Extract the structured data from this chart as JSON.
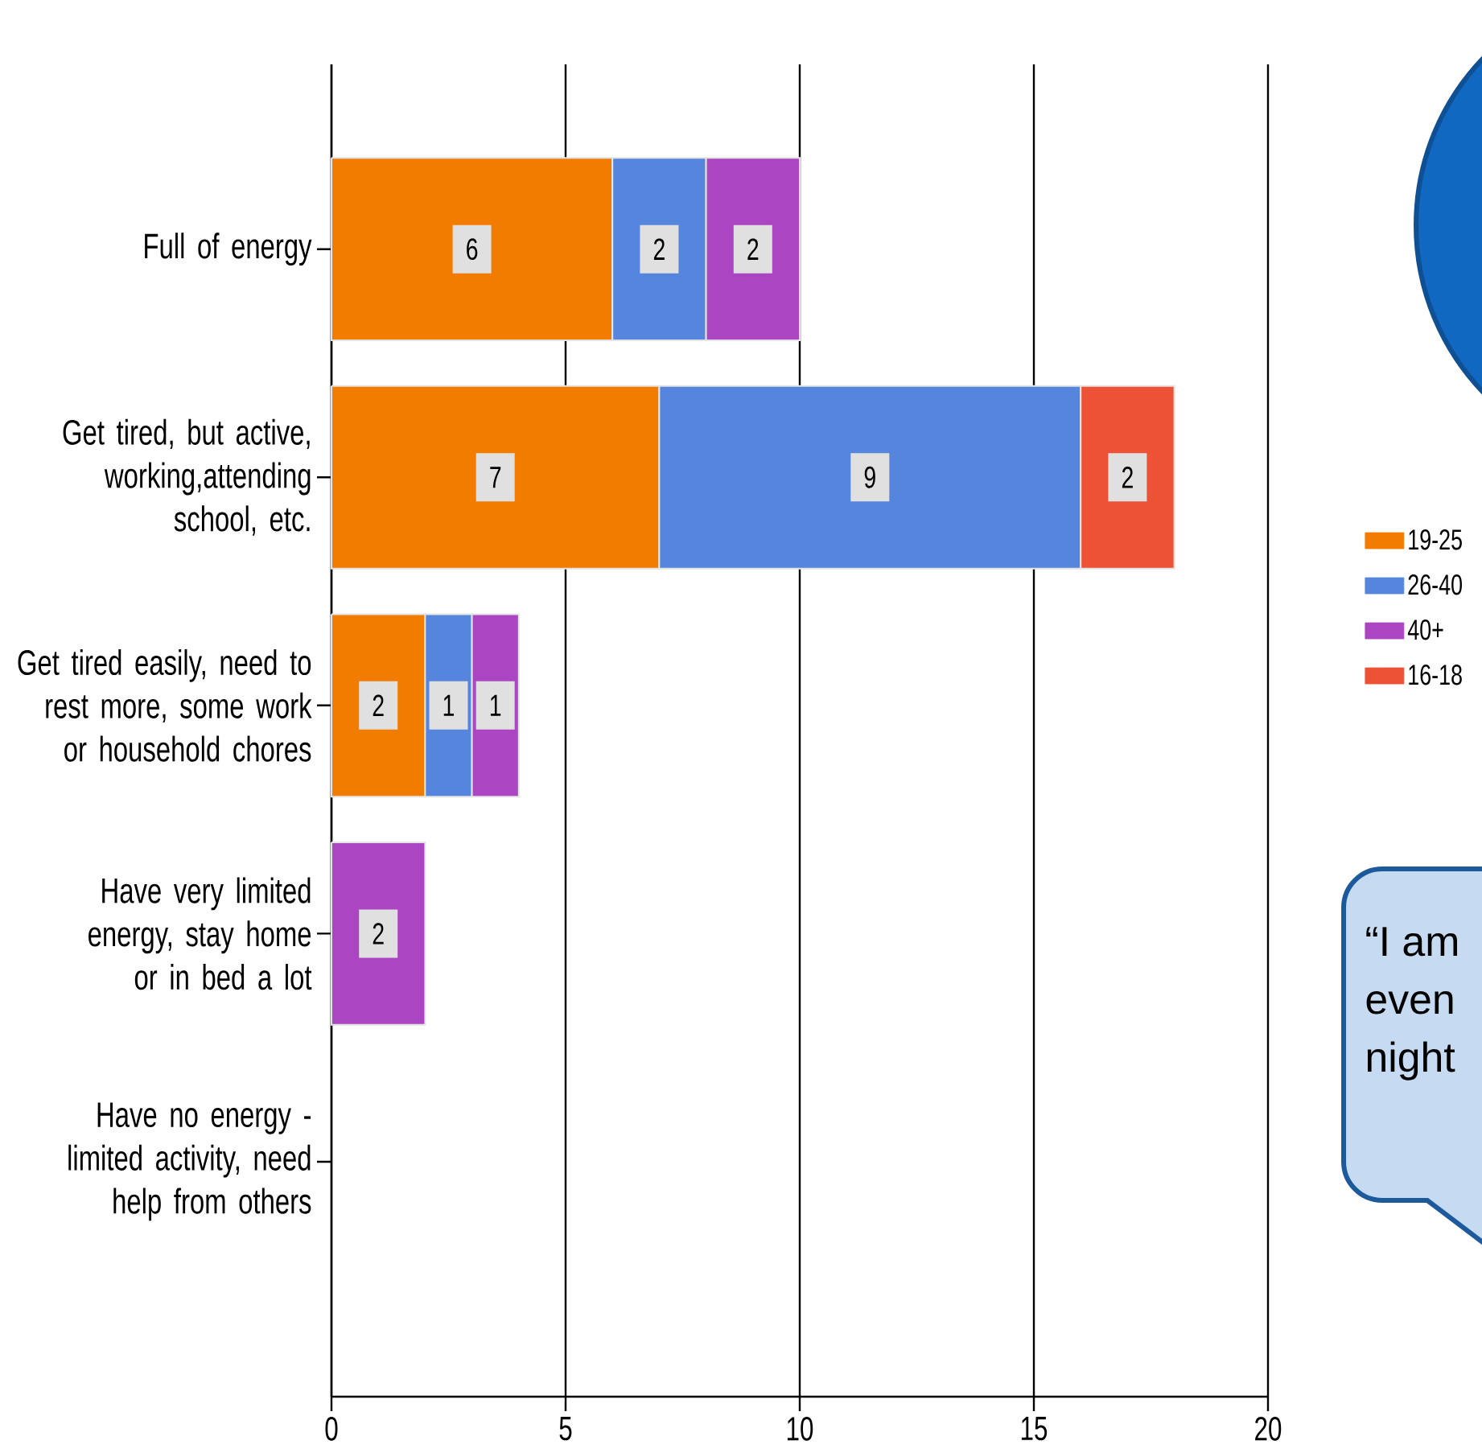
{
  "chart_data": {
    "type": "bar",
    "orientation": "horizontal",
    "stacked": true,
    "categories": [
      "Full of energy",
      "Get tired, but active, working,attending school, etc.",
      "Get tired easily, need to rest more, some work or household chores",
      "Have very limited energy, stay home or in bed a lot",
      "Have no energy - limited activity, need help from others"
    ],
    "series": [
      {
        "name": "19-25",
        "color": "#f27c00",
        "values": [
          6,
          7,
          2,
          null,
          null
        ]
      },
      {
        "name": "26-40",
        "color": "#5585dc",
        "values": [
          2,
          9,
          1,
          null,
          null
        ]
      },
      {
        "name": "40+",
        "color": "#ac45c2",
        "values": [
          2,
          null,
          1,
          2,
          null
        ]
      },
      {
        "name": "16-18",
        "color": "#ee5236",
        "values": [
          null,
          2,
          null,
          null,
          null
        ]
      }
    ],
    "xlim": [
      0,
      20
    ],
    "xticks": [
      0,
      5,
      10,
      15,
      20
    ],
    "grid": "x",
    "legend": "right",
    "data_labels": true,
    "annotations": [
      "“I am",
      "even",
      "night"
    ]
  }
}
